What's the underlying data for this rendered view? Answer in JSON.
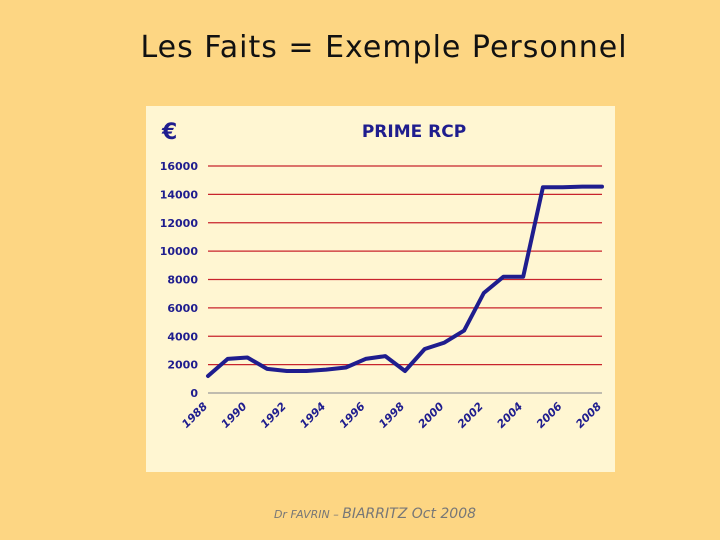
{
  "slide": {
    "title": "Les Faits = Exemple Personnel",
    "footer_author": "Dr FAVRIN – ",
    "footer_event": "BIARRITZ Oct 2008"
  },
  "chart_data": {
    "type": "line",
    "title": "PRIME RCP",
    "ylabel": "€",
    "xlabel": "",
    "ylim": [
      0,
      16000
    ],
    "yticks": [
      0,
      2000,
      4000,
      6000,
      8000,
      10000,
      12000,
      14000,
      16000
    ],
    "xlim": [
      1988,
      2008
    ],
    "xticks": [
      1988,
      1990,
      1992,
      1994,
      1996,
      1998,
      2000,
      2002,
      2004,
      2006,
      2008
    ],
    "grid": true,
    "colors": {
      "series": "#1F1D8E",
      "grid": "#C8232C",
      "panel": "#FFF6D2"
    },
    "series": [
      {
        "x": [
          1988,
          1989,
          1990,
          1991,
          1992,
          1993,
          1994,
          1995,
          1996,
          1997,
          1998,
          1999,
          2000,
          2001,
          2002,
          2003,
          2004,
          2005,
          2006,
          2007,
          2008
        ],
        "values": [
          1200,
          2400,
          2500,
          1700,
          1550,
          1550,
          1650,
          1800,
          2400,
          2600,
          1550,
          3100,
          3550,
          4400,
          7050,
          8200,
          8200,
          14500,
          14500,
          14550,
          14550
        ]
      }
    ]
  }
}
